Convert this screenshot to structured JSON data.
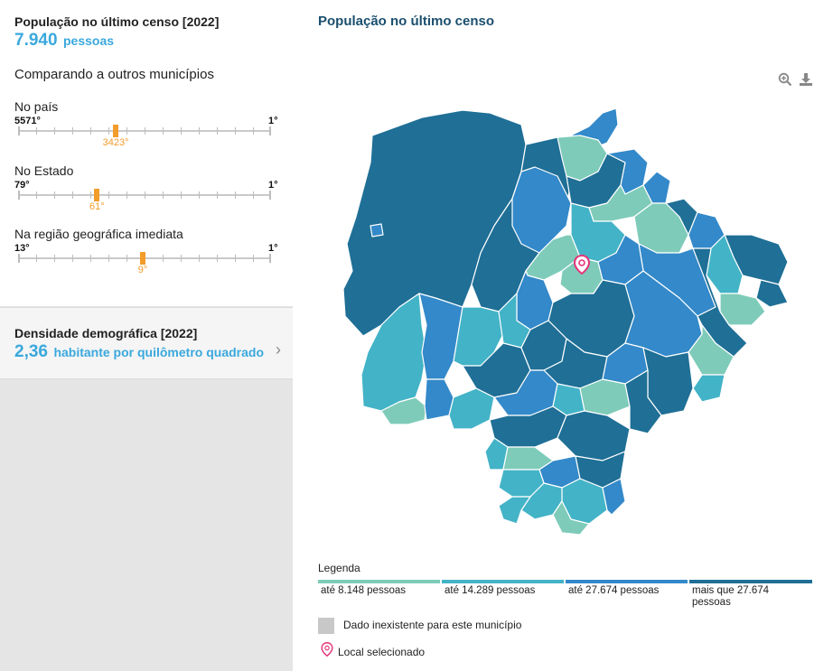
{
  "population": {
    "title": "População no último censo [2022]",
    "value": "7.940",
    "unit": "pessoas"
  },
  "comparison": {
    "title": "Comparando a outros municípios",
    "rankings": [
      {
        "label": "No país",
        "min_label": "5571°",
        "max_label": "1°",
        "value": "3423°",
        "position_fraction": 0.386
      },
      {
        "label": "No Estado",
        "min_label": "79°",
        "max_label": "1°",
        "value": "61°",
        "position_fraction": 0.312
      },
      {
        "label": "Na região geográfica imediata",
        "min_label": "13°",
        "max_label": "1°",
        "value": "9°",
        "position_fraction": 0.493
      }
    ]
  },
  "density": {
    "title": "Densidade demográfica [2022]",
    "value": "2,36",
    "unit": "habitante por quilômetro quadrado",
    "chevron": "›"
  },
  "map": {
    "title": "População no último censo",
    "icons": {
      "zoom": "zoom-in-icon",
      "download": "download-icon"
    }
  },
  "legend": {
    "title": "Legenda",
    "items": [
      {
        "label": "até 8.148 pessoas",
        "color": "#7ecbb9"
      },
      {
        "label": "até 14.289 pessoas",
        "color": "#43b3c7"
      },
      {
        "label": "até 27.674 pessoas",
        "color": "#3389c9"
      },
      {
        "label": "mais que 27.674 pessoas",
        "color": "#1f6f96"
      }
    ],
    "no_data": {
      "label": "Dado inexistente para este município",
      "color": "#c8c8c8"
    },
    "selected": {
      "label": "Local selecionado",
      "color": "#e5337a"
    }
  }
}
